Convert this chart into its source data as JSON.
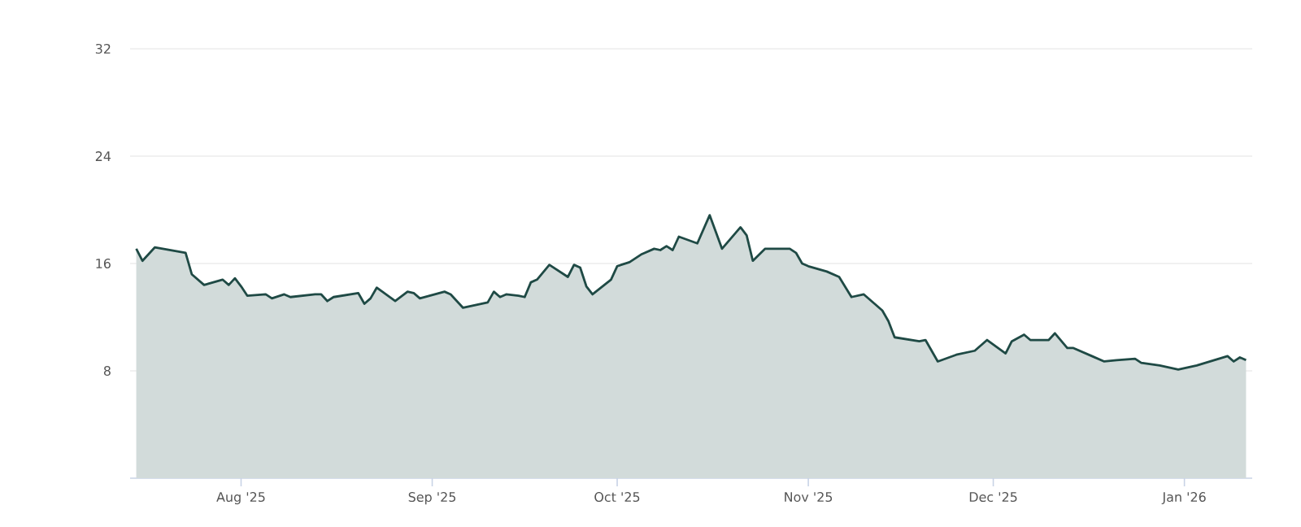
{
  "chart_data": {
    "type": "area",
    "color": "#1f4a45",
    "grid": "y",
    "xlim": [
      "2025-07-14",
      "2026-01-12"
    ],
    "ylim": [
      0,
      32
    ],
    "yticks": [
      8,
      16,
      24,
      32
    ],
    "xticks": [
      {
        "value": "2025-08-01",
        "label": "Aug '25"
      },
      {
        "value": "2025-09-01",
        "label": "Sep '25"
      },
      {
        "value": "2025-10-01",
        "label": "Oct '25"
      },
      {
        "value": "2025-11-01",
        "label": "Nov '25"
      },
      {
        "value": "2025-12-01",
        "label": "Dec '25"
      },
      {
        "value": "2026-01-01",
        "label": "Jan '26"
      }
    ],
    "x": [
      "2025-07-15",
      "2025-07-16",
      "2025-07-18",
      "2025-07-23",
      "2025-07-24",
      "2025-07-26",
      "2025-07-29",
      "2025-07-30",
      "2025-07-31",
      "2025-08-01",
      "2025-08-02",
      "2025-08-05",
      "2025-08-06",
      "2025-08-08",
      "2025-08-09",
      "2025-08-13",
      "2025-08-14",
      "2025-08-15",
      "2025-08-16",
      "2025-08-20",
      "2025-08-21",
      "2025-08-22",
      "2025-08-23",
      "2025-08-26",
      "2025-08-28",
      "2025-08-29",
      "2025-08-30",
      "2025-09-03",
      "2025-09-04",
      "2025-09-06",
      "2025-09-10",
      "2025-09-11",
      "2025-09-12",
      "2025-09-13",
      "2025-09-15",
      "2025-09-16",
      "2025-09-17",
      "2025-09-18",
      "2025-09-20",
      "2025-09-23",
      "2025-09-24",
      "2025-09-25",
      "2025-09-26",
      "2025-09-27",
      "2025-09-30",
      "2025-10-01",
      "2025-10-03",
      "2025-10-05",
      "2025-10-07",
      "2025-10-08",
      "2025-10-09",
      "2025-10-10",
      "2025-10-11",
      "2025-10-14",
      "2025-10-16",
      "2025-10-18",
      "2025-10-21",
      "2025-10-22",
      "2025-10-23",
      "2025-10-25",
      "2025-10-29",
      "2025-10-30",
      "2025-10-31",
      "2025-11-01",
      "2025-11-04",
      "2025-11-06",
      "2025-11-08",
      "2025-11-10",
      "2025-11-13",
      "2025-11-14",
      "2025-11-15",
      "2025-11-19",
      "2025-11-20",
      "2025-11-22",
      "2025-11-25",
      "2025-11-28",
      "2025-11-30",
      "2025-12-03",
      "2025-12-04",
      "2025-12-06",
      "2025-12-07",
      "2025-12-10",
      "2025-12-11",
      "2025-12-13",
      "2025-12-14",
      "2025-12-17",
      "2025-12-19",
      "2025-12-21",
      "2025-12-24",
      "2025-12-25",
      "2025-12-28",
      "2025-12-31",
      "2026-01-03",
      "2026-01-08",
      "2026-01-09",
      "2026-01-10",
      "2026-01-11"
    ],
    "values": [
      17.1,
      16.2,
      17.2,
      16.8,
      15.2,
      14.4,
      14.8,
      14.4,
      14.9,
      14.3,
      13.6,
      13.7,
      13.4,
      13.7,
      13.5,
      13.7,
      13.7,
      13.2,
      13.5,
      13.8,
      13.0,
      13.4,
      14.2,
      13.2,
      13.9,
      13.8,
      13.4,
      13.9,
      13.7,
      12.7,
      13.1,
      13.9,
      13.5,
      13.7,
      13.6,
      13.5,
      14.6,
      14.8,
      15.9,
      15.0,
      15.9,
      15.7,
      14.3,
      13.7,
      14.8,
      15.8,
      16.1,
      16.7,
      17.1,
      17.0,
      17.3,
      17.0,
      18.0,
      17.5,
      19.6,
      17.1,
      18.7,
      18.1,
      16.2,
      17.1,
      17.1,
      16.8,
      16.0,
      15.8,
      15.4,
      15.0,
      13.5,
      13.7,
      12.5,
      11.7,
      10.5,
      10.2,
      10.3,
      8.7,
      9.2,
      9.5,
      10.3,
      9.3,
      10.2,
      10.7,
      10.3,
      10.3,
      10.8,
      9.7,
      9.7,
      9.1,
      8.7,
      8.8,
      8.9,
      8.6,
      8.4,
      8.1,
      8.4,
      9.1,
      8.7,
      9.0,
      8.8
    ]
  }
}
